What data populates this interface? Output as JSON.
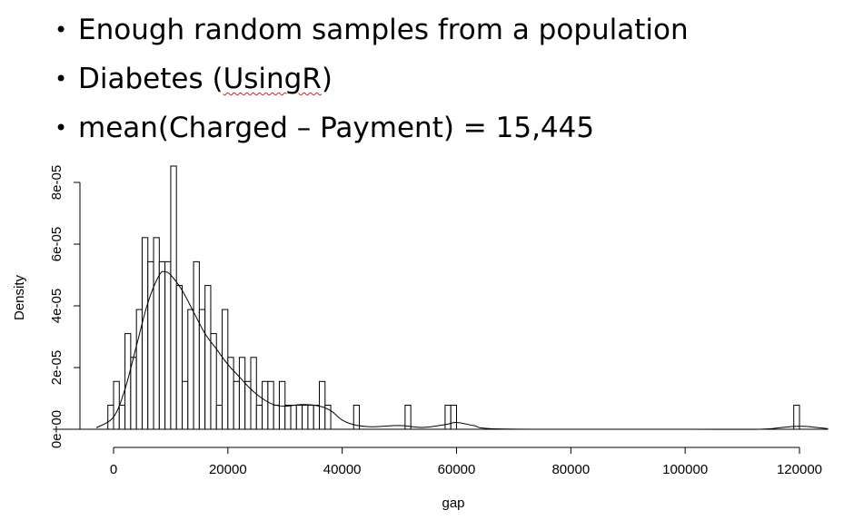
{
  "bullets": {
    "b1": "Enough random samples from a population",
    "b2_pre": "Diabetes (",
    "b2_under": "UsingR",
    "b2_post": ")",
    "b3": "mean(Charged – Payment) = 15,445"
  },
  "bullet_glyph": "•",
  "chart_data": {
    "type": "bar",
    "xlabel": "gap",
    "ylabel": "Density",
    "xlim": [
      -5000,
      125000
    ],
    "ylim": [
      0,
      8.7e-05
    ],
    "x_ticks": [
      0,
      20000,
      40000,
      60000,
      80000,
      100000,
      120000
    ],
    "x_tick_labels": [
      "0",
      "20000",
      "40000",
      "60000",
      "80000",
      "100000",
      "120000"
    ],
    "y_ticks": [
      0,
      2e-05,
      4e-05,
      6e-05,
      8e-05
    ],
    "y_tick_labels": [
      "0e+00",
      "2e-05",
      "4e-05",
      "6e-05",
      "8e-05"
    ],
    "bin_width": 1000,
    "bin_start": -1000,
    "histogram_densities": [
      7.8e-06,
      1.55e-05,
      7.8e-06,
      3.1e-05,
      2.33e-05,
      3.88e-05,
      6.21e-05,
      5.43e-05,
      6.21e-05,
      5.43e-05,
      5.43e-05,
      8.53e-05,
      4.66e-05,
      1.55e-05,
      3.88e-05,
      5.43e-05,
      3.88e-05,
      4.66e-05,
      3.1e-05,
      7.8e-06,
      3.88e-05,
      2.33e-05,
      1.55e-05,
      2.33e-05,
      1.55e-05,
      2.33e-05,
      7.8e-06,
      1.55e-05,
      1.55e-05,
      7.8e-06,
      1.55e-05,
      7.8e-06,
      7.8e-06,
      7.8e-06,
      7.8e-06,
      7.8e-06,
      7.8e-06,
      1.55e-05,
      7.8e-06,
      0,
      0,
      0,
      0,
      7.8e-06,
      0,
      0,
      0,
      0,
      0,
      0,
      0,
      0,
      7.8e-06,
      0,
      0,
      0,
      0,
      0,
      0,
      7.8e-06,
      7.8e-06
    ],
    "isolated_bar": {
      "x_start": 119000,
      "x_end": 120000,
      "density": 7.8e-06
    },
    "density_curve": {
      "x": [
        -3000,
        0,
        2000,
        4000,
        6000,
        8000,
        9000,
        10000,
        12000,
        14000,
        16000,
        18000,
        20000,
        22000,
        24000,
        26000,
        28000,
        30000,
        33000,
        36000,
        38000,
        40000,
        42000,
        45000,
        50000,
        54000,
        58000,
        60000,
        63000,
        66000,
        80000,
        100000,
        113000,
        117000,
        120000,
        123000,
        125000
      ],
      "y": [
        5e-07,
        4e-06,
        1.3e-05,
        2.7e-05,
        4.1e-05,
        5e-05,
        5.1e-05,
        5e-05,
        4.5e-05,
        3.8e-05,
        3.1e-05,
        2.6e-05,
        2.1e-05,
        1.7e-05,
        1.3e-05,
        1e-05,
        8e-06,
        7.5e-06,
        8e-06,
        7.5e-06,
        6e-06,
        3e-06,
        1.5e-06,
        8e-07,
        1.2e-06,
        6e-07,
        1.5e-06,
        2.2e-06,
        1.2e-06,
        2e-07,
        0,
        0,
        0,
        6e-07,
        1e-06,
        6e-07,
        2e-07
      ]
    }
  }
}
